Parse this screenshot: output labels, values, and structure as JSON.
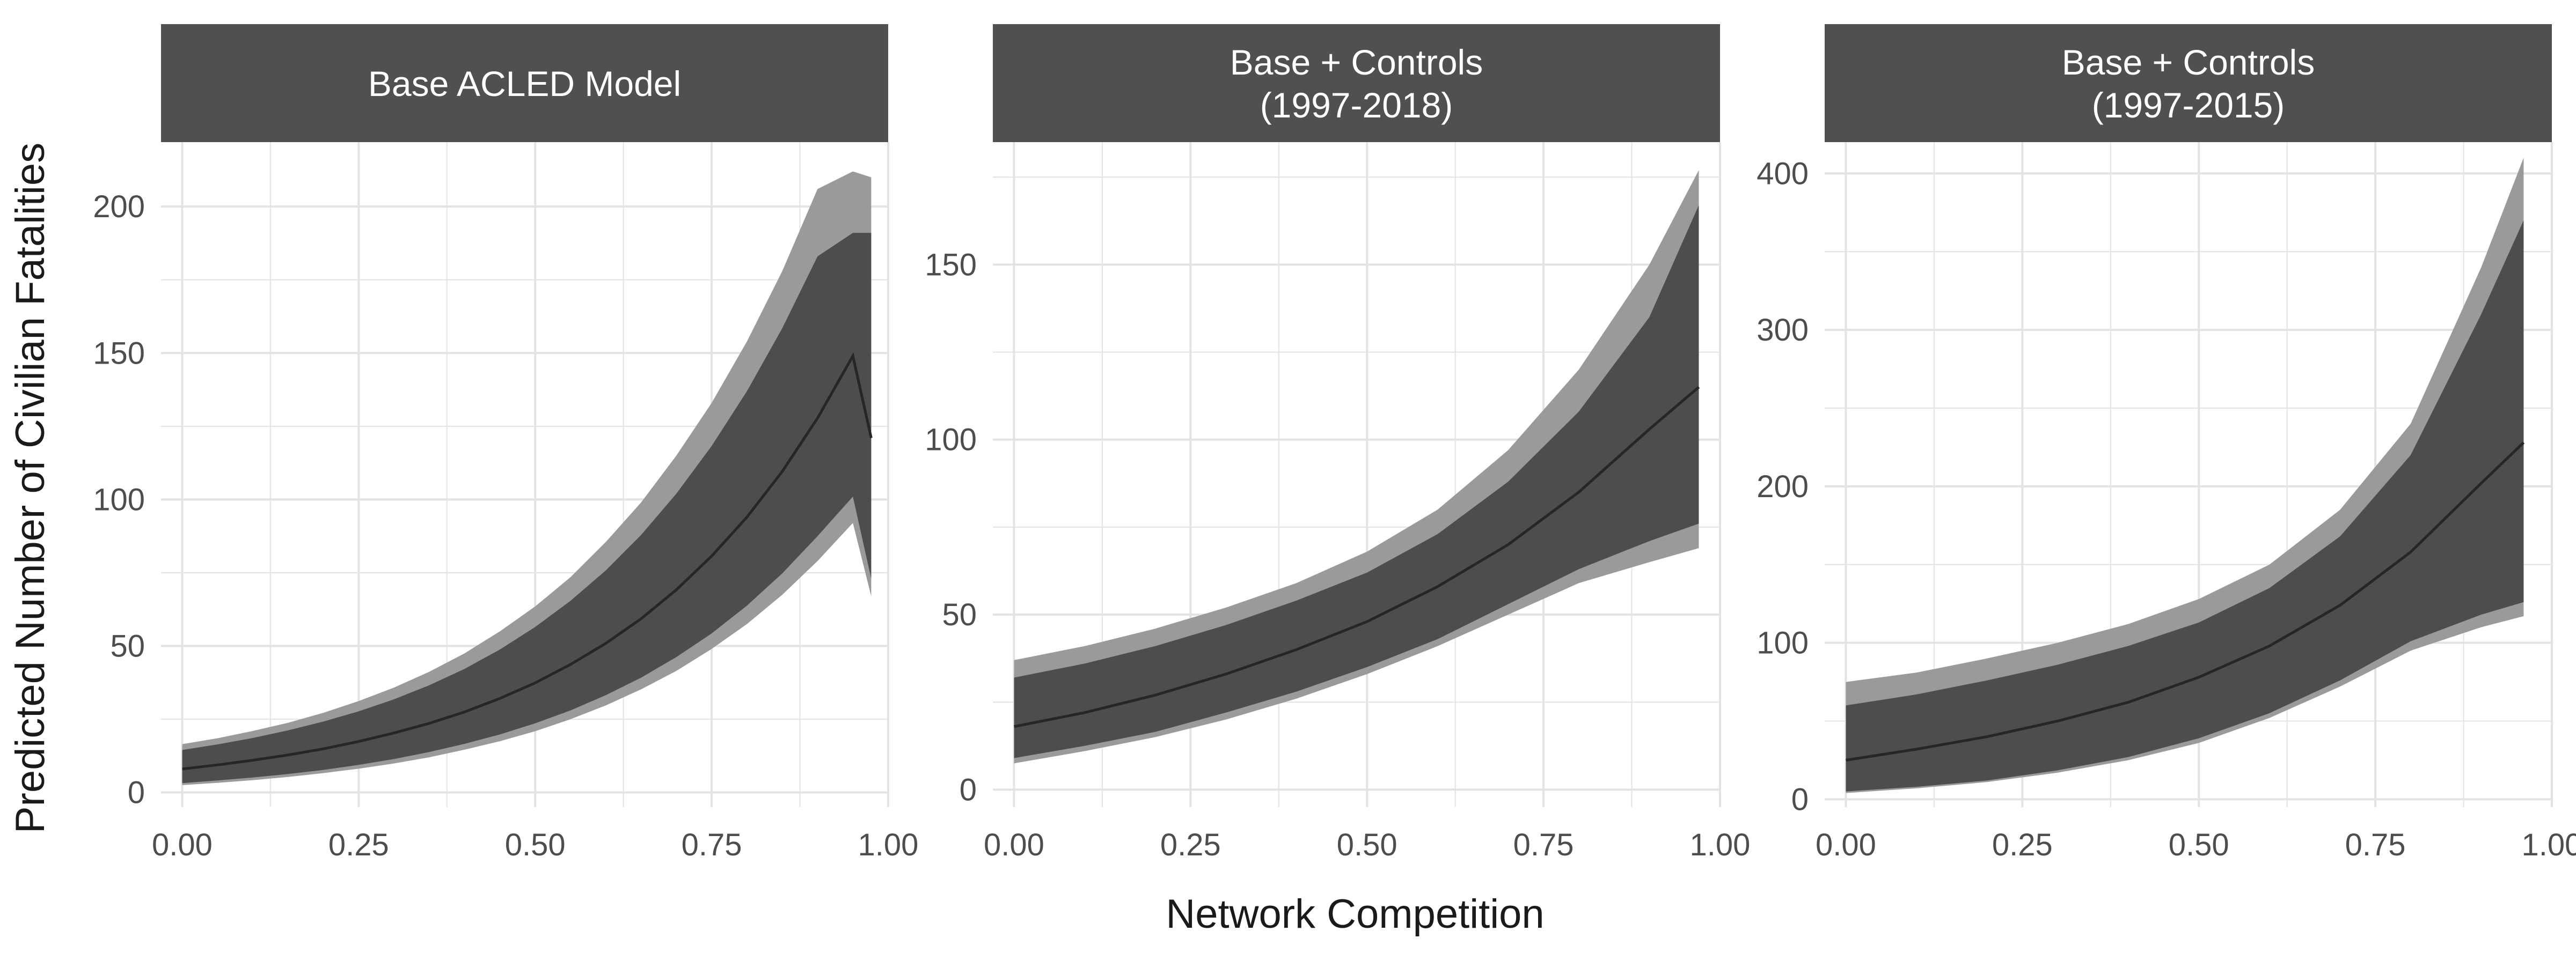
{
  "figure": {
    "xlabel": "Network Competition",
    "ylabel": "Predicted Number of Civilian Fatalities"
  },
  "colors": {
    "strip": "#505050",
    "strip_text": "#ffffff",
    "band_outer": "#9a9a9a",
    "band_inner": "#4d4d4d",
    "line": "#262626",
    "grid": "#e3e3e3",
    "tick_text": "#4d4d4d",
    "label_text": "#1a1a1a"
  },
  "chart_data": [
    {
      "type": "area",
      "title": [
        "Base ACLED Model"
      ],
      "xlim": [
        -0.03,
        1.0
      ],
      "ylim": [
        -5,
        222
      ],
      "xticks": [
        0,
        0.25,
        0.5,
        0.75,
        1.0
      ],
      "xtick_labels": [
        "0.00",
        "0.25",
        "0.50",
        "0.75",
        "1.00"
      ],
      "yticks": [
        0,
        50,
        100,
        150,
        200
      ],
      "ytick_labels": [
        "0",
        "50",
        "100",
        "150",
        "200"
      ],
      "grid": true,
      "x": [
        0.0,
        0.05,
        0.1,
        0.15,
        0.2,
        0.25,
        0.3,
        0.35,
        0.4,
        0.45,
        0.5,
        0.55,
        0.6,
        0.65,
        0.7,
        0.75,
        0.8,
        0.85,
        0.9,
        0.95,
        0.976
      ],
      "series": [
        {
          "role": "estimate",
          "values": [
            8,
            9.4,
            11,
            12.8,
            14.9,
            17.4,
            20.3,
            23.6,
            27.5,
            32.1,
            37.4,
            43.7,
            50.9,
            59.3,
            69.2,
            80.7,
            94,
            109.6,
            127.8,
            149,
            121
          ]
        },
        {
          "role": "ci95_lower",
          "values": [
            2.5,
            3.3,
            4.2,
            5.3,
            6.6,
            8.1,
            9.9,
            12,
            14.6,
            17.5,
            20.9,
            25,
            29.7,
            35.2,
            41.5,
            49,
            57.5,
            67.5,
            79,
            92,
            67
          ]
        },
        {
          "role": "ci95_upper",
          "values": [
            16.5,
            18.5,
            21,
            23.8,
            27.2,
            31.2,
            35.8,
            41.2,
            47.5,
            55,
            63.5,
            73.5,
            85.5,
            99,
            115,
            133,
            154,
            178,
            206,
            212,
            210
          ]
        },
        {
          "role": "ci90_lower",
          "values": [
            3.2,
            4.1,
            5.1,
            6.3,
            7.7,
            9.4,
            11.4,
            13.8,
            16.6,
            19.8,
            23.6,
            28,
            33.2,
            39.2,
            46.2,
            54.3,
            63.8,
            74.8,
            87.5,
            101,
            73
          ]
        },
        {
          "role": "ci90_upper",
          "values": [
            14.5,
            16.4,
            18.6,
            21.2,
            24.2,
            27.7,
            31.8,
            36.6,
            42.2,
            48.8,
            56.5,
            65.4,
            75.8,
            87.9,
            102,
            118.3,
            137,
            158.5,
            183,
            191,
            191
          ]
        }
      ]
    },
    {
      "type": "area",
      "title": [
        "Base + Controls",
        "(1997-2018)"
      ],
      "xlim": [
        -0.03,
        1.0
      ],
      "ylim": [
        -5,
        185
      ],
      "xticks": [
        0,
        0.25,
        0.5,
        0.75,
        1.0
      ],
      "xtick_labels": [
        "0.00",
        "0.25",
        "0.50",
        "0.75",
        "1.00"
      ],
      "yticks": [
        0,
        50,
        100,
        150
      ],
      "ytick_labels": [
        "0",
        "50",
        "100",
        "150"
      ],
      "grid": true,
      "x": [
        0.0,
        0.1,
        0.2,
        0.3,
        0.4,
        0.5,
        0.6,
        0.7,
        0.8,
        0.9,
        0.97
      ],
      "series": [
        {
          "role": "estimate",
          "values": [
            18,
            22,
            27,
            33,
            40,
            48,
            58,
            70,
            85,
            103,
            115
          ]
        },
        {
          "role": "ci95_lower",
          "values": [
            7.5,
            11,
            15,
            20,
            26,
            33,
            41,
            50,
            59,
            65,
            69
          ]
        },
        {
          "role": "ci95_upper",
          "values": [
            37,
            41,
            46,
            52,
            59,
            68,
            80,
            97,
            120,
            150,
            177
          ]
        },
        {
          "role": "ci90_lower",
          "values": [
            9,
            12.5,
            16.5,
            22,
            28,
            35,
            43,
            53,
            63,
            71,
            76
          ]
        },
        {
          "role": "ci90_upper",
          "values": [
            32,
            36,
            41,
            47,
            54,
            62,
            73,
            88,
            108,
            135,
            167
          ]
        }
      ]
    },
    {
      "type": "area",
      "title": [
        "Base + Controls",
        "(1997-2015)"
      ],
      "xlim": [
        -0.03,
        1.0
      ],
      "ylim": [
        -5,
        420
      ],
      "xticks": [
        0,
        0.25,
        0.5,
        0.75,
        1.0
      ],
      "xtick_labels": [
        "0.00",
        "0.25",
        "0.50",
        "0.75",
        "1.00"
      ],
      "yticks": [
        0,
        100,
        200,
        300,
        400
      ],
      "ytick_labels": [
        "0",
        "100",
        "200",
        "300",
        "400"
      ],
      "grid": true,
      "x": [
        0.0,
        0.1,
        0.2,
        0.3,
        0.4,
        0.5,
        0.6,
        0.7,
        0.8,
        0.9,
        0.96
      ],
      "series": [
        {
          "role": "estimate",
          "values": [
            25,
            32,
            40,
            50,
            62,
            78,
            98,
            124,
            158,
            202,
            228
          ]
        },
        {
          "role": "ci95_lower",
          "values": [
            4,
            7,
            11,
            17,
            25,
            36,
            52,
            72,
            95,
            110,
            117
          ]
        },
        {
          "role": "ci95_upper",
          "values": [
            75,
            81,
            90,
            100,
            112,
            128,
            150,
            185,
            240,
            340,
            410
          ]
        },
        {
          "role": "ci90_lower",
          "values": [
            5,
            8,
            12,
            18.5,
            27,
            39,
            55,
            76,
            101,
            118,
            126
          ]
        },
        {
          "role": "ci90_upper",
          "values": [
            60,
            67,
            76,
            86,
            98,
            113,
            135,
            168,
            220,
            310,
            370
          ]
        }
      ]
    }
  ]
}
